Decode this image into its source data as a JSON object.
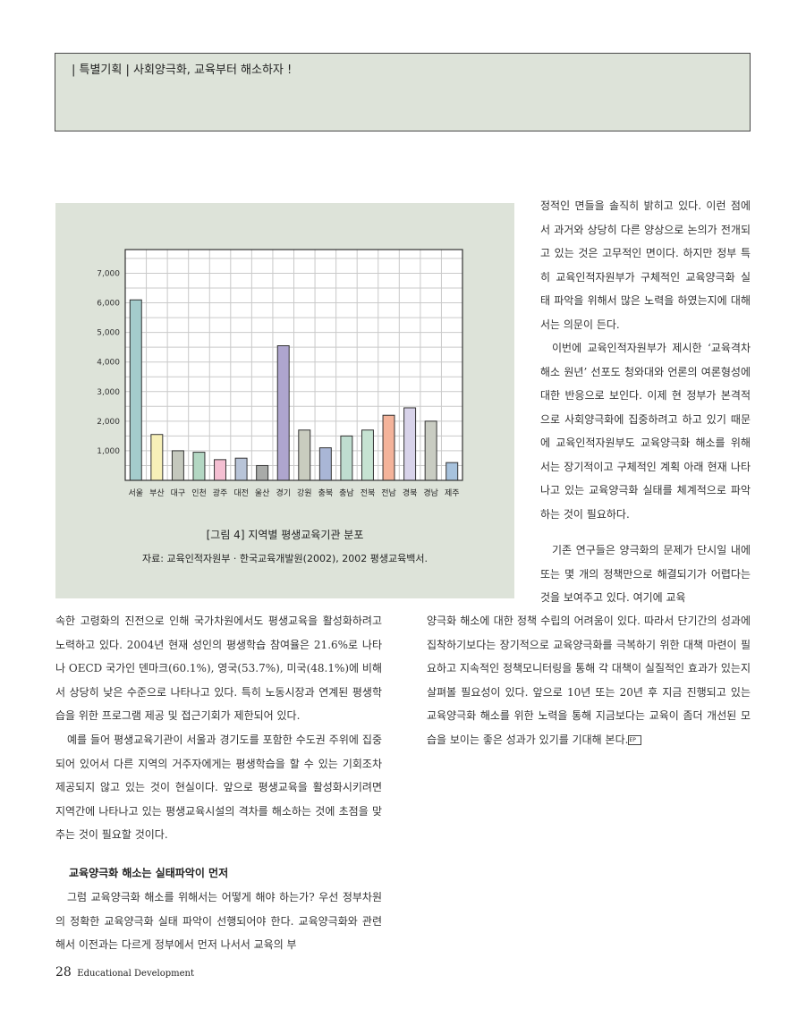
{
  "header": {
    "text": "| 특별기획 | 사회양극화, 교육부터 해소하자 !"
  },
  "figure": {
    "title": "[그림 4] 지역별 평생교육기관 분포",
    "source": "자료: 교육인적자원부 · 한국교육개발원(2002), 2002 평생교육백서."
  },
  "chart_data": {
    "type": "bar",
    "title": "",
    "xlabel": "",
    "ylabel": "",
    "ylim": [
      0,
      7800
    ],
    "yticks": [
      "1,000",
      "2,000",
      "3,000",
      "4,000",
      "5,000",
      "6,000",
      "7,000"
    ],
    "grid": true,
    "categories": [
      "서울",
      "부산",
      "대구",
      "인천",
      "광주",
      "대전",
      "울산",
      "경기",
      "강원",
      "충북",
      "충남",
      "전북",
      "전남",
      "경북",
      "경남",
      "제주"
    ],
    "values": [
      6100,
      1550,
      1000,
      950,
      700,
      750,
      500,
      4550,
      1700,
      1100,
      1500,
      1700,
      2200,
      2450,
      2000,
      600
    ],
    "colors": [
      "#a4cccc",
      "#f7f0b8",
      "#c4c8bd",
      "#b3d7c3",
      "#f4bfd2",
      "#b8c4d8",
      "#a8aaa8",
      "#aea5ce",
      "#c9ccbf",
      "#a9b6d6",
      "#bfddd0",
      "#c6e3d2",
      "#f4b39a",
      "#d8d3ea",
      "#c9ccc2",
      "#a7c2dd"
    ]
  },
  "right_column": [
    "정적인 면들을 솔직히 밝히고 있다. 이런 점에서 과거와 상당히 다른 양상으로 논의가 전개되고 있는 것은 고무적인 면이다. 하지만 정부 특히 교육인적자원부가 구체적인 교육양극화 실태 파악을 위해서 많은 노력을 하였는지에 대해서는 의문이 든다.",
    "이번에 교육인적자원부가 제시한 ‘교육격차 해소 원년’ 선포도 청와대와 언론의 여론형성에 대한 반응으로 보인다. 이제 현 정부가 본격적으로 사회양극화에 집중하려고 하고 있기 때문에 교육인적자원부도 교육양극화 해소를 위해서는 장기적이고 구체적인 계획 아래 현재 나타나고 있는 교육양극화 실태를 체계적으로 파악하는 것이 필요하다.",
    "기존 연구들은 양극화의 문제가 단시일 내에 또는 몇 개의 정책만으로 해결되기가 어렵다는 것을 보여주고 있다. 여기에 교육"
  ],
  "right_lower": "양극화 해소에 대한 정책 수립의 어려움이 있다. 따라서 단기간의 성과에 집착하기보다는 장기적으로 교육양극화를 극복하기 위한 대책 마련이 필요하고 지속적인 정책모니터링을 통해 각 대책이 실질적인 효과가 있는지 살펴볼 필요성이 있다. 앞으로 10년 또는 20년 후 지금 진행되고 있는 교육양극화 해소를 위한 노력을 통해 지금보다는 교육이 좀더 개선된 모습을 보이는 좋은 성과가 있기를 기대해 본다.",
  "end_mark": "EP",
  "left_column": [
    "속한 고령화의 진전으로 인해 국가차원에서도 평생교육을 활성화하려고 노력하고 있다. 2004년 현재 성인의 평생학습 참여율은 21.6%로 나타나 OECD 국가인 덴마크(60.1%), 영국(53.7%), 미국(48.1%)에 비해서 상당히 낮은 수준으로 나타나고 있다. 특히 노동시장과 연계된 평생학습을 위한 프로그램 제공 및 접근기회가 제한되어 있다.",
    "예를 들어 평생교육기관이 서울과 경기도를 포함한 수도권 주위에 집중되어 있어서 다른 지역의 거주자에게는 평생학습을 할 수 있는 기회조차 제공되지 않고 있는 것이 현실이다. 앞으로 평생교육을 활성화시키려면 지역간에 나타나고 있는 평생교육시설의 격차를 해소하는 것에 초점을 맞추는 것이 필요할 것이다."
  ],
  "subheading": "교육양극화 해소는 실태파악이 먼저",
  "subsection_text": "그럼 교육양극화 해소를 위해서는 어떻게 해야 하는가? 우선 정부차원의 정확한 교육양극화 실태 파악이 선행되어야 한다. 교육양극화와 관련해서 이전과는 다르게 정부에서 먼저 나서서 교육의 부",
  "footer": {
    "page_number": "28",
    "publication": "Educational Development"
  }
}
